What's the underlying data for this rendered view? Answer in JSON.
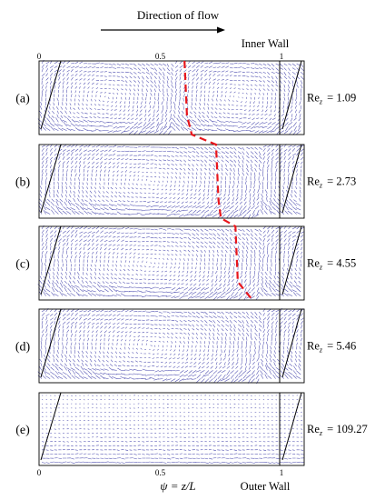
{
  "header": {
    "flow_label": "Direction of flow",
    "inner_wall": "Inner Wall",
    "outer_wall": "Outer Wall"
  },
  "axis": {
    "ticks_top": [
      "0",
      "0.5",
      "1"
    ],
    "ticks_bottom": [
      "0",
      "0.5",
      "1"
    ],
    "tick_values": [
      0,
      0.5,
      1
    ],
    "xlabel": "ψ = z/L"
  },
  "panels": [
    {
      "label": "(a)",
      "re_label": "Re",
      "re_sub": "z",
      "re_value": "= 1.09"
    },
    {
      "label": "(b)",
      "re_label": "Re",
      "re_sub": "z",
      "re_value": "= 2.73"
    },
    {
      "label": "(c)",
      "re_label": "Re",
      "re_sub": "z",
      "re_value": "= 4.55"
    },
    {
      "label": "(d)",
      "re_label": "Re",
      "re_sub": "z",
      "re_value": "= 5.46"
    },
    {
      "label": "(e)",
      "re_label": "Re",
      "re_sub": "z",
      "re_value": "= 109.27"
    }
  ],
  "front_line": {
    "color": "#e8161c",
    "points_psi": [
      0.6,
      0.61,
      0.63,
      0.73,
      0.74,
      0.75,
      0.81,
      0.82,
      0.88
    ]
  },
  "colors": {
    "vectors": "#2a2aa0",
    "frame": "#000000"
  }
}
